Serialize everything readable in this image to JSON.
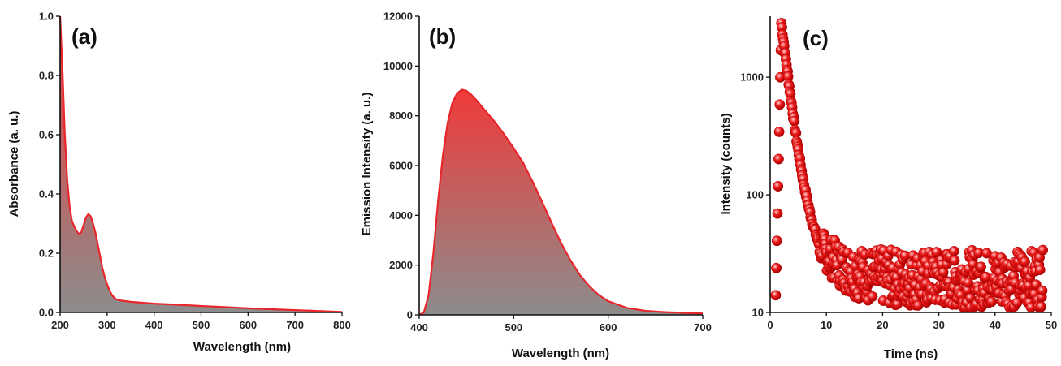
{
  "chart_data": [
    {
      "type": "area",
      "panel_label": "(a)",
      "xlabel": "Wavelength (nm)",
      "ylabel": "Absorbance (a. u.)",
      "xlim": [
        200,
        800
      ],
      "ylim": [
        0,
        1.0
      ],
      "x_ticks": [
        "200",
        "300",
        "400",
        "500",
        "600",
        "700",
        "800"
      ],
      "y_ticks": [
        "0.0",
        "0.2",
        "0.4",
        "0.6",
        "0.8",
        "1.0"
      ],
      "line_color": "#e8262b",
      "fill_top_color": "#f03a3a",
      "fill_bottom_color": "#8c8c8c",
      "x": [
        200,
        205,
        210,
        215,
        220,
        225,
        230,
        235,
        240,
        245,
        250,
        255,
        260,
        265,
        270,
        275,
        280,
        285,
        290,
        295,
        300,
        305,
        310,
        315,
        320,
        330,
        340,
        350,
        400,
        450,
        500,
        550,
        600,
        650,
        700,
        750,
        800
      ],
      "y": [
        1.0,
        0.82,
        0.6,
        0.45,
        0.36,
        0.31,
        0.29,
        0.275,
        0.265,
        0.27,
        0.295,
        0.32,
        0.332,
        0.325,
        0.3,
        0.27,
        0.23,
        0.19,
        0.15,
        0.12,
        0.095,
        0.075,
        0.06,
        0.05,
        0.044,
        0.04,
        0.038,
        0.036,
        0.03,
        0.026,
        0.022,
        0.018,
        0.014,
        0.011,
        0.008,
        0.005,
        0.002
      ]
    },
    {
      "type": "area",
      "panel_label": "(b)",
      "xlabel": "Wavelength (nm)",
      "ylabel": "Emission Intensity (a. u.)",
      "xlim": [
        400,
        700
      ],
      "ylim": [
        0,
        12000
      ],
      "x_ticks": [
        "400",
        "500",
        "600",
        "700"
      ],
      "y_ticks": [
        "0",
        "2000",
        "4000",
        "6000",
        "8000",
        "10000",
        "12000"
      ],
      "line_color": "#e8262b",
      "fill_top_color": "#f03a3a",
      "fill_bottom_color": "#8c8c8c",
      "x": [
        400,
        405,
        410,
        415,
        420,
        425,
        430,
        435,
        440,
        445,
        450,
        455,
        460,
        470,
        480,
        490,
        500,
        510,
        520,
        530,
        540,
        550,
        560,
        570,
        580,
        590,
        600,
        620,
        640,
        660,
        680,
        700
      ],
      "y": [
        0,
        100,
        800,
        2500,
        4600,
        6400,
        7700,
        8500,
        8900,
        9050,
        9000,
        8850,
        8650,
        8200,
        7750,
        7250,
        6700,
        6100,
        5350,
        4550,
        3700,
        2900,
        2200,
        1600,
        1150,
        800,
        550,
        280,
        160,
        110,
        80,
        60
      ]
    },
    {
      "type": "scatter",
      "panel_label": "(c)",
      "xlabel": "Time (ns)",
      "ylabel": "Intensity (counts)",
      "xlim": [
        0,
        50
      ],
      "ylim": [
        10,
        3300
      ],
      "yscale": "log",
      "x_ticks": [
        "0",
        "10",
        "20",
        "30",
        "40",
        "50"
      ],
      "y_ticks": [
        "10",
        "100",
        "1000"
      ],
      "marker_color": "#ee1c1c",
      "decay": {
        "onset_time": 1.0,
        "peak_time": 2.0,
        "peak_counts": 2900,
        "end_time": 48.5,
        "time_step": 0.1,
        "baseline_counts": 18,
        "scatter_range": [
          11,
          34
        ]
      }
    }
  ]
}
